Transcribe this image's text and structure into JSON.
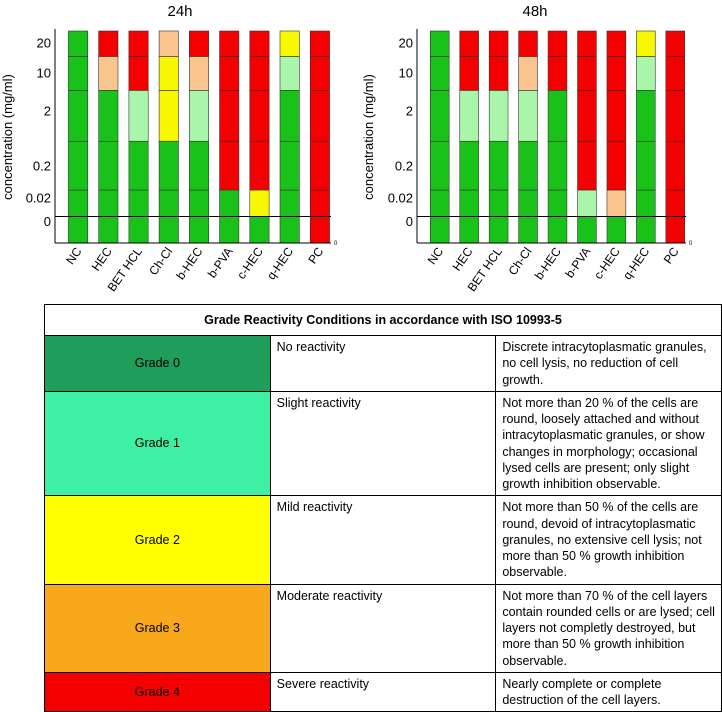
{
  "chart_data": [
    {
      "type": "stacked-bar",
      "title": "24h",
      "ylabel": "concentration (mg/ml)",
      "yticks": [
        "0",
        "0.02",
        "0.2",
        "2",
        "10",
        "20"
      ],
      "categories": [
        "NC",
        "HEC",
        "BET HCL",
        "Ch-Cl",
        "b-HEC",
        "b-PVA",
        "c-HEC",
        "q-HEC",
        "PC"
      ],
      "series_note": "each bar lists grade per concentration band from 0 to 20 mg/ml",
      "grades": [
        [
          0,
          0,
          0,
          0,
          0,
          0
        ],
        [
          0,
          0,
          0,
          0,
          3,
          4
        ],
        [
          0,
          0,
          0,
          1,
          4,
          4
        ],
        [
          0,
          0,
          0,
          2,
          2,
          3
        ],
        [
          0,
          0,
          0,
          1,
          3,
          4
        ],
        [
          0,
          0,
          4,
          4,
          4,
          4
        ],
        [
          0,
          2,
          4,
          4,
          4,
          4
        ],
        [
          0,
          0,
          0,
          0,
          1,
          2
        ],
        [
          4,
          4,
          4,
          4,
          4,
          4
        ]
      ],
      "corner_mark": "0"
    },
    {
      "type": "stacked-bar",
      "title": "48h",
      "ylabel": "concentration (mg/ml)",
      "yticks": [
        "0",
        "0.02",
        "0.2",
        "2",
        "10",
        "20"
      ],
      "categories": [
        "NC",
        "HEC",
        "BET HCL",
        "Ch-Cl",
        "b-HEC",
        "b-PVA",
        "c-HEC",
        "q-HEC",
        "PC"
      ],
      "series_note": "each bar lists grade per concentration band from 0 to 20 mg/ml",
      "grades": [
        [
          0,
          0,
          0,
          0,
          0,
          0
        ],
        [
          0,
          0,
          0,
          1,
          4,
          4
        ],
        [
          0,
          0,
          0,
          1,
          4,
          4
        ],
        [
          0,
          0,
          0,
          1,
          3,
          4
        ],
        [
          0,
          0,
          0,
          0,
          4,
          4
        ],
        [
          0,
          1,
          4,
          4,
          4,
          4
        ],
        [
          0,
          3,
          4,
          4,
          4,
          4
        ],
        [
          0,
          0,
          0,
          0,
          1,
          2
        ],
        [
          4,
          4,
          4,
          4,
          4,
          4
        ]
      ],
      "corner_mark": "0"
    }
  ],
  "grade_colors": {
    "0": "#19c219",
    "1": "#a9f5a9",
    "2": "#f7f700",
    "3": "#f9c48e",
    "4": "#f40000"
  },
  "table": {
    "title": "Grade Reactivity Conditions in accordance with ISO 10993-5",
    "rows": [
      {
        "grade": "Grade 0",
        "color": "#1e9e5a",
        "reactivity": "No reactivity",
        "conditions": "Discrete intracytoplasmatic granules, no cell lysis, no reduction of cell growth."
      },
      {
        "grade": "Grade 1",
        "color": "#3ef0a4",
        "reactivity": "Slight reactivity",
        "conditions": "Not more than 20 % of the cells are round, loosely attached and without intracytoplasmatic granules, or show changes in morphology; occasional lysed cells are present; only slight growth inhibition observable."
      },
      {
        "grade": "Grade 2",
        "color": "#ffff00",
        "reactivity": "Mild reactivity",
        "conditions": "Not more than 50 % of the cells are round, devoid of intracytoplasmatic granules, no extensive cell lysis; not more than 50 % growth inhibition observable."
      },
      {
        "grade": "Grade 3",
        "color": "#f8a81a",
        "reactivity": "Moderate reactivity",
        "conditions": "Not more than 70 % of the cell layers contain rounded cells or are lysed; cell layers not completly destroyed, but more than 50 % growth inhibition observable."
      },
      {
        "grade": "Grade 4",
        "color": "#f40000",
        "reactivity": "Severe reactivity",
        "conditions": "Nearly complete or complete destruction of the cell layers."
      }
    ]
  }
}
